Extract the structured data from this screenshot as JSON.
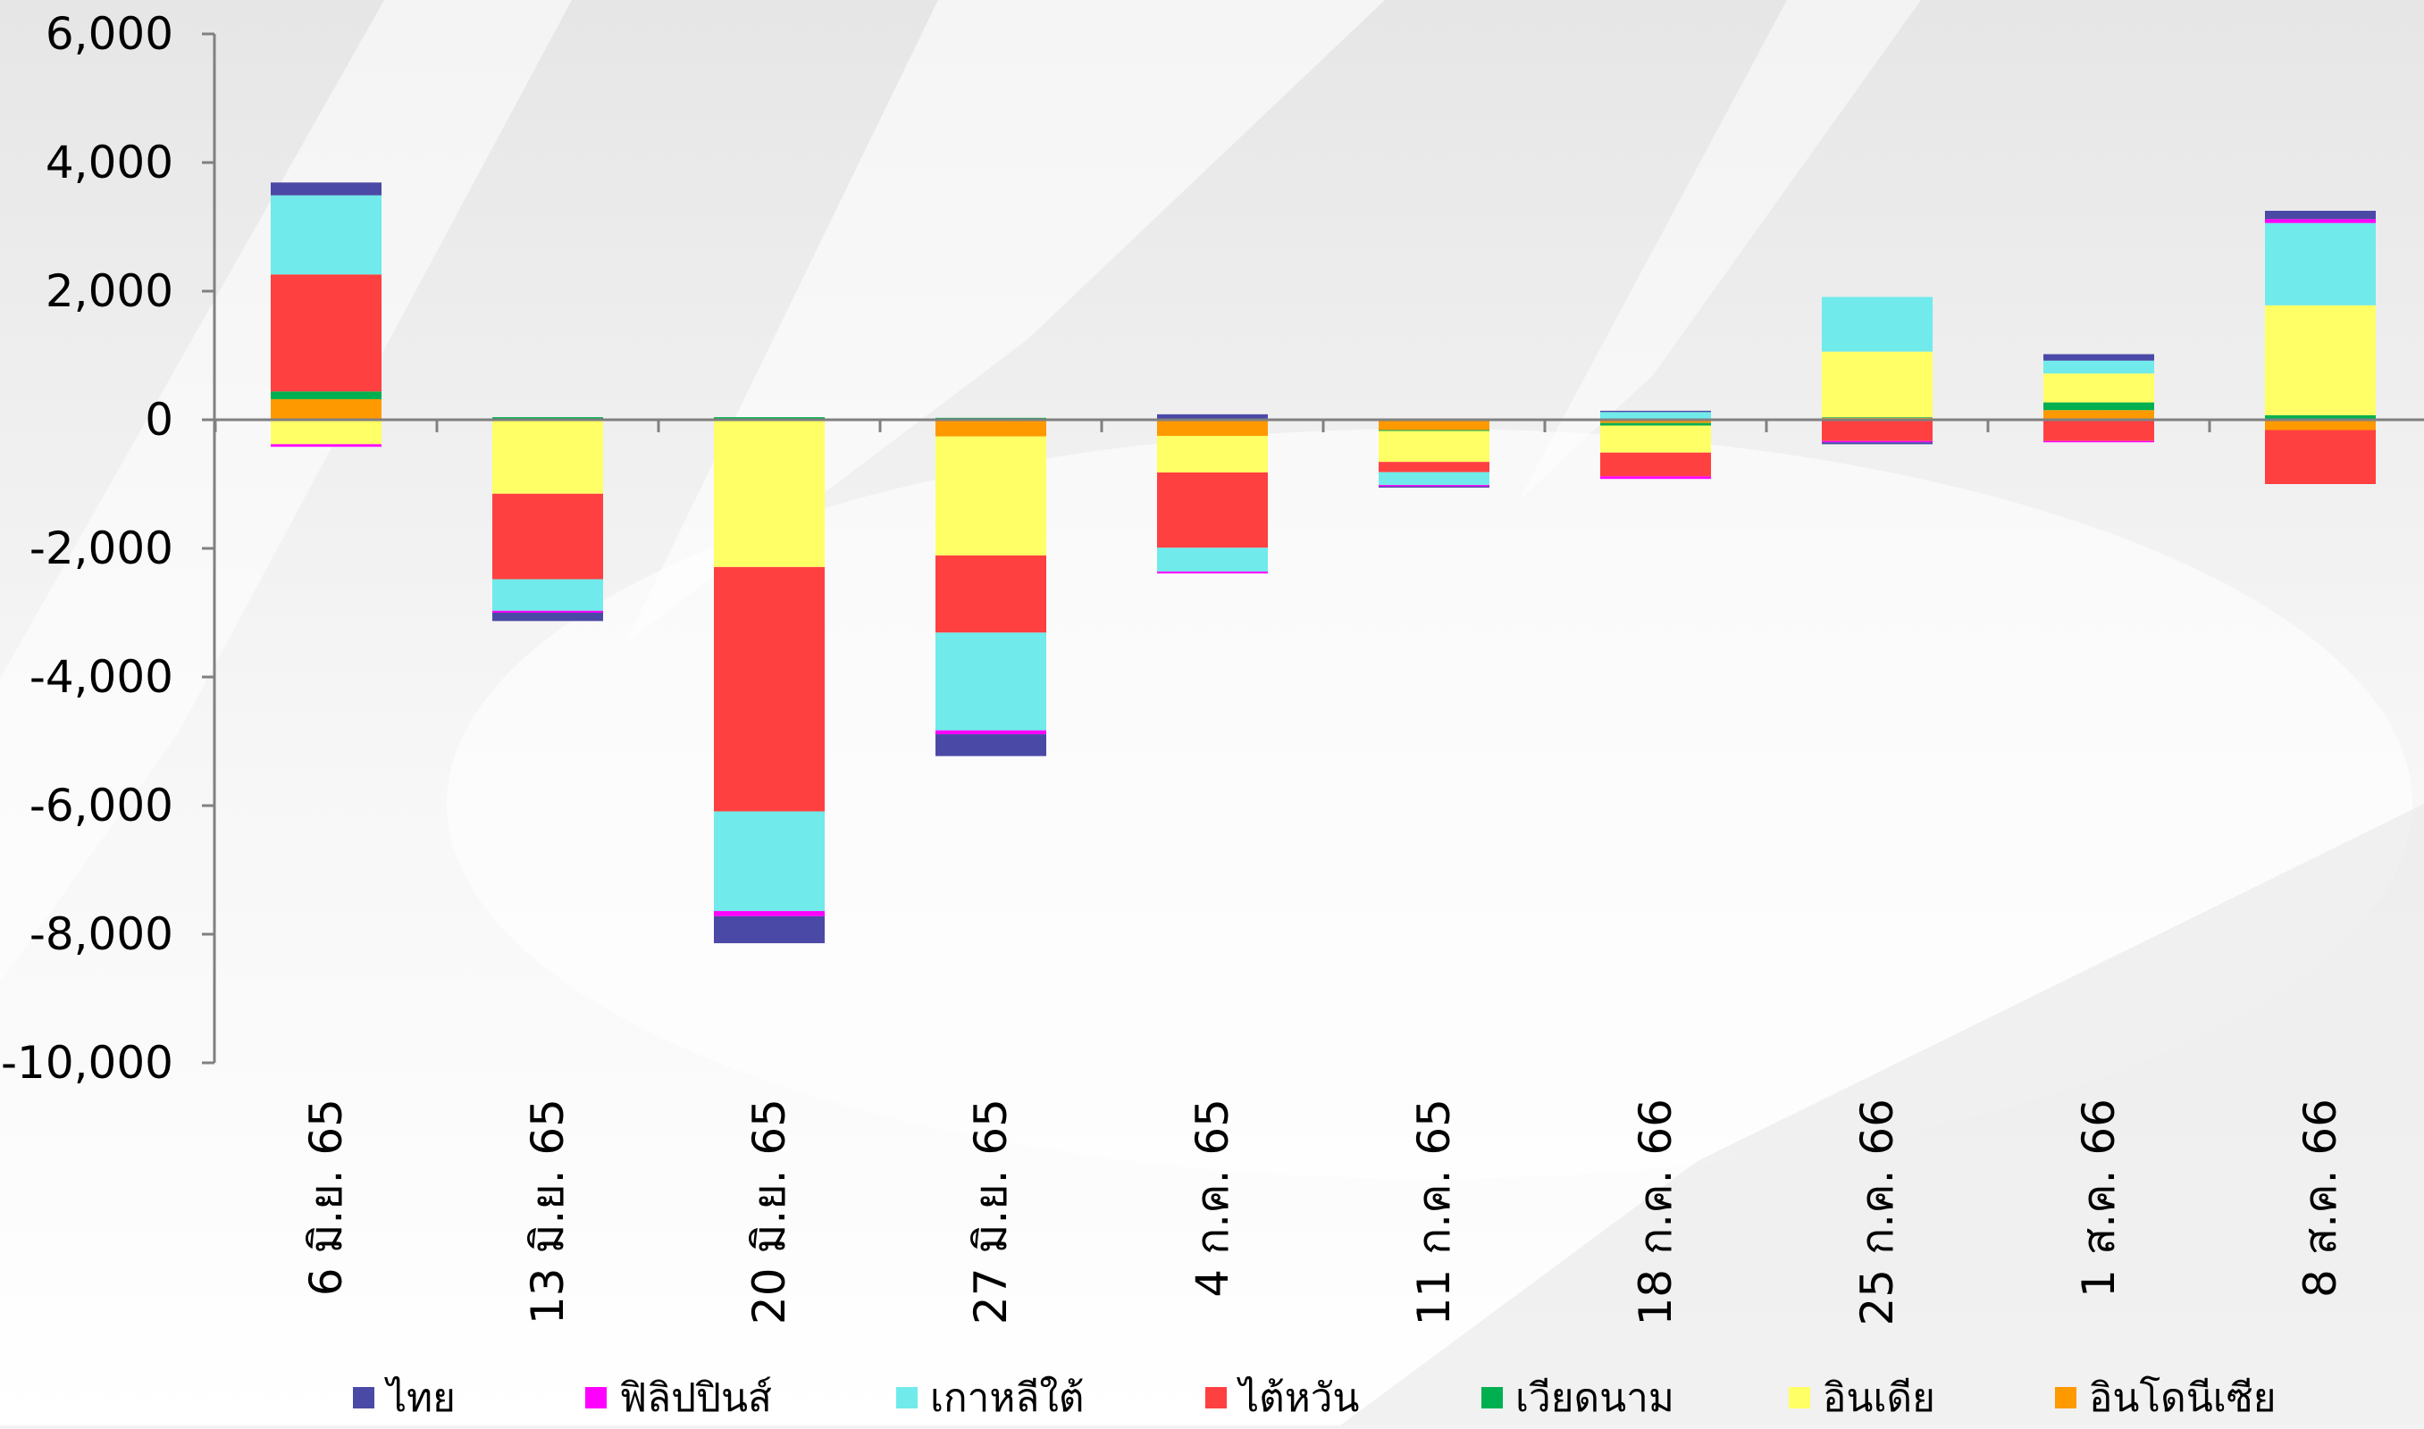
{
  "chart_data": {
    "type": "bar",
    "stacked": true,
    "title": "",
    "xlabel": "",
    "ylabel": "",
    "ylim": [
      -10000,
      6000
    ],
    "yticks": [
      6000,
      4000,
      2000,
      0,
      -2000,
      -4000,
      -6000,
      -8000,
      -10000
    ],
    "ytick_labels": [
      "6,000",
      "4,000",
      "2,000",
      "0",
      "-2,000",
      "-4,000",
      "-6,000",
      "-8,000",
      "-10,000"
    ],
    "categories": [
      "6 มิ.ย. 65",
      "13 มิ.ย. 65",
      "20 มิ.ย. 65",
      "27 มิ.ย. 65",
      "4 ก.ค. 65",
      "11 ก.ค. 65",
      "18 ก.ค. 66",
      "25 ก.ค. 66",
      "1 ส.ค. 66",
      "8 ส.ค. 66"
    ],
    "grid": false,
    "legend_position": "bottom",
    "series": [
      {
        "name": "อินโดนีเซีย",
        "color": "#FF9900",
        "values": [
          320,
          -20,
          -20,
          -260,
          -250,
          -160,
          -50,
          30,
          150,
          -160
        ]
      },
      {
        "name": "เวียดนาม",
        "color": "#00B050",
        "values": [
          120,
          40,
          40,
          30,
          15,
          -15,
          -40,
          10,
          120,
          70
        ]
      },
      {
        "name": "อินเดีย",
        "color": "#FFFF66",
        "values": [
          -380,
          -1130,
          -2270,
          -1850,
          -570,
          -480,
          -420,
          1020,
          450,
          1710
        ]
      },
      {
        "name": "ไต้หวัน",
        "color": "#FF4040",
        "values": [
          1820,
          -1330,
          -3800,
          -1200,
          -1170,
          -160,
          -370,
          -330,
          -330,
          -840
        ]
      },
      {
        "name": "เกาหลีใต้",
        "color": "#70EAEA",
        "values": [
          1230,
          -490,
          -1550,
          -1520,
          -370,
          -200,
          120,
          850,
          200,
          1280
        ]
      },
      {
        "name": "ฟิลิปปินส์",
        "color": "#FF00FF",
        "values": [
          -40,
          -30,
          -80,
          -60,
          -30,
          -20,
          -40,
          -20,
          -20,
          60
        ]
      },
      {
        "name": "ไทย",
        "color": "#4B49A6",
        "values": [
          200,
          -130,
          -420,
          -340,
          70,
          -20,
          20,
          -30,
          100,
          130
        ]
      }
    ]
  },
  "legend": [
    {
      "label": "ไทย",
      "color": "#4B49A6"
    },
    {
      "label": "ฟิลิปปินส์",
      "color": "#FF00FF"
    },
    {
      "label": "เกาหลีใต้",
      "color": "#70EAEA"
    },
    {
      "label": "ไต้หวัน",
      "color": "#FF4040"
    },
    {
      "label": "เวียดนาม",
      "color": "#00B050"
    },
    {
      "label": "อินเดีย",
      "color": "#FFFF66"
    },
    {
      "label": "อินโดนีเซีย",
      "color": "#FF9900"
    }
  ]
}
